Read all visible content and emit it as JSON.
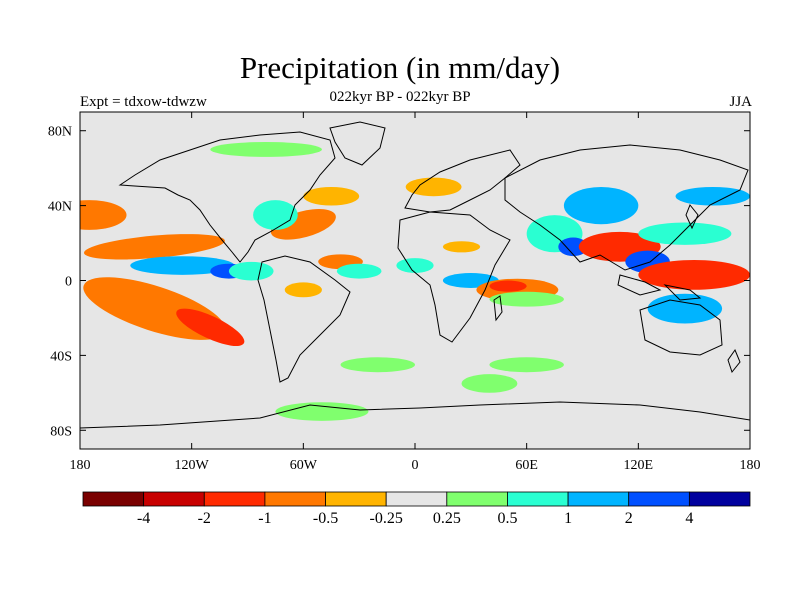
{
  "title": "Precipitation (in mm/day)",
  "subtitle": "022kyr BP - 022kyr BP",
  "left_label": "Expt = tdxow-tdwzw",
  "right_label": "JJA",
  "map": {
    "projection": "cylindrical equidistant",
    "lon_range": [
      -180,
      180
    ],
    "lat_range": [
      -90,
      90
    ],
    "background_color": "#e6e6e6",
    "x_ticks": [
      {
        "lon": -180,
        "label": "180"
      },
      {
        "lon": -120,
        "label": "120W"
      },
      {
        "lon": -60,
        "label": "60W"
      },
      {
        "lon": 0,
        "label": "0"
      },
      {
        "lon": 60,
        "label": "60E"
      },
      {
        "lon": 120,
        "label": "120E"
      },
      {
        "lon": 180,
        "label": "180"
      }
    ],
    "y_ticks": [
      {
        "lat": 80,
        "label": "80N"
      },
      {
        "lat": 40,
        "label": "40N"
      },
      {
        "lat": 0,
        "label": "0"
      },
      {
        "lat": -40,
        "label": "40S"
      },
      {
        "lat": -80,
        "label": "80S"
      }
    ]
  },
  "colorbar": {
    "colors": [
      "#7a0000",
      "#c80000",
      "#ff2a00",
      "#ff7800",
      "#ffb400",
      "#e6e6e6",
      "#80ff6e",
      "#2affd2",
      "#00b4ff",
      "#0050ff",
      "#00009e"
    ],
    "labels": [
      "-4",
      "-2",
      "-1",
      "-0.5",
      "-0.25",
      "0.25",
      "0.5",
      "1",
      "2",
      "4"
    ]
  },
  "anomaly_regions": [
    {
      "lon": -150,
      "lat": -10,
      "rlon": 22,
      "rlat": 7,
      "rot": 12,
      "color": "#c80000"
    },
    {
      "lon": -140,
      "lat": -15,
      "rlon": 40,
      "rlat": 12,
      "rot": 18,
      "color": "#ff7800"
    },
    {
      "lon": -110,
      "lat": -25,
      "rlon": 20,
      "rlat": 6,
      "rot": 25,
      "color": "#ff2a00"
    },
    {
      "lon": -140,
      "lat": 18,
      "rlon": 38,
      "rlat": 6,
      "rot": -5,
      "color": "#ff7800"
    },
    {
      "lon": -125,
      "lat": 8,
      "rlon": 28,
      "rlat": 5,
      "rot": 0,
      "color": "#00b4ff"
    },
    {
      "lon": -100,
      "lat": 5,
      "rlon": 10,
      "rlat": 4,
      "rot": 0,
      "color": "#0050ff"
    },
    {
      "lon": -88,
      "lat": 5,
      "rlon": 12,
      "rlat": 5,
      "rot": 0,
      "color": "#2affd2"
    },
    {
      "lon": -60,
      "lat": 30,
      "rlon": 18,
      "rlat": 7,
      "rot": -15,
      "color": "#ff7800"
    },
    {
      "lon": -75,
      "lat": 35,
      "rlon": 12,
      "rlat": 8,
      "rot": 0,
      "color": "#2affd2"
    },
    {
      "lon": -45,
      "lat": 45,
      "rlon": 15,
      "rlat": 5,
      "rot": 0,
      "color": "#ffb400"
    },
    {
      "lon": -40,
      "lat": 10,
      "rlon": 12,
      "rlat": 4,
      "rot": 0,
      "color": "#ff7800"
    },
    {
      "lon": -30,
      "lat": 5,
      "rlon": 12,
      "rlat": 4,
      "rot": 0,
      "color": "#2affd2"
    },
    {
      "lon": -80,
      "lat": 70,
      "rlon": 30,
      "rlat": 4,
      "rot": 0,
      "color": "#80ff6e"
    },
    {
      "lon": -60,
      "lat": -5,
      "rlon": 10,
      "rlat": 4,
      "rot": 0,
      "color": "#ffb400"
    },
    {
      "lon": 10,
      "lat": 50,
      "rlon": 15,
      "rlat": 5,
      "rot": 0,
      "color": "#ffb400"
    },
    {
      "lon": 0,
      "lat": 8,
      "rlon": 10,
      "rlat": 4,
      "rot": 0,
      "color": "#2affd2"
    },
    {
      "lon": 25,
      "lat": 18,
      "rlon": 10,
      "rlat": 3,
      "rot": 0,
      "color": "#ffb400"
    },
    {
      "lon": 30,
      "lat": 0,
      "rlon": 15,
      "rlat": 4,
      "rot": 0,
      "color": "#00b4ff"
    },
    {
      "lon": 55,
      "lat": -5,
      "rlon": 22,
      "rlat": 6,
      "rot": 0,
      "color": "#ff7800"
    },
    {
      "lon": 50,
      "lat": -3,
      "rlon": 10,
      "rlat": 3,
      "rot": 0,
      "color": "#ff2a00"
    },
    {
      "lon": 60,
      "lat": -10,
      "rlon": 20,
      "rlat": 4,
      "rot": 0,
      "color": "#80ff6e"
    },
    {
      "lon": 75,
      "lat": 25,
      "rlon": 15,
      "rlat": 10,
      "rot": 0,
      "color": "#2affd2"
    },
    {
      "lon": 85,
      "lat": 18,
      "rlon": 8,
      "rlat": 5,
      "rot": 0,
      "color": "#0050ff"
    },
    {
      "lon": 100,
      "lat": 40,
      "rlon": 20,
      "rlat": 10,
      "rot": 0,
      "color": "#00b4ff"
    },
    {
      "lon": 110,
      "lat": 18,
      "rlon": 22,
      "rlat": 8,
      "rot": 0,
      "color": "#ff2a00"
    },
    {
      "lon": 125,
      "lat": 10,
      "rlon": 12,
      "rlat": 6,
      "rot": 0,
      "color": "#0050ff"
    },
    {
      "lon": 150,
      "lat": 3,
      "rlon": 30,
      "rlat": 8,
      "rot": 0,
      "color": "#ff2a00"
    },
    {
      "lon": 145,
      "lat": 25,
      "rlon": 25,
      "rlat": 6,
      "rot": 0,
      "color": "#2affd2"
    },
    {
      "lon": 145,
      "lat": -15,
      "rlon": 20,
      "rlat": 8,
      "rot": 0,
      "color": "#00b4ff"
    },
    {
      "lon": 160,
      "lat": 45,
      "rlon": 20,
      "rlat": 5,
      "rot": 0,
      "color": "#00b4ff"
    },
    {
      "lon": -20,
      "lat": -45,
      "rlon": 20,
      "rlat": 4,
      "rot": 0,
      "color": "#80ff6e"
    },
    {
      "lon": 60,
      "lat": -45,
      "rlon": 20,
      "rlat": 4,
      "rot": 0,
      "color": "#80ff6e"
    },
    {
      "lon": -50,
      "lat": -70,
      "rlon": 25,
      "rlat": 5,
      "rot": 0,
      "color": "#80ff6e"
    },
    {
      "lon": 40,
      "lat": -55,
      "rlon": 15,
      "rlat": 5,
      "rot": 0,
      "color": "#80ff6e"
    },
    {
      "lon": -175,
      "lat": 35,
      "rlon": 20,
      "rlat": 8,
      "rot": 0,
      "color": "#ff7800"
    }
  ]
}
